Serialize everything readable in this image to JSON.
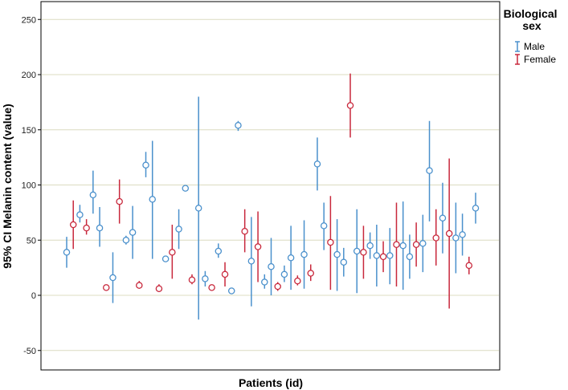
{
  "chart_data": {
    "type": "errorbar",
    "xlabel": "Patients (id)",
    "ylabel": "95% CI Melanin content (value)",
    "ylim": [
      -60,
      260
    ],
    "yticks": [
      -50,
      0,
      50,
      100,
      150,
      200,
      250
    ],
    "grid": "horizontal",
    "legend": {
      "title": "Biological sex",
      "position": "top-right"
    },
    "colors": {
      "Male": "#4a90cc",
      "Female": "#c8283c"
    },
    "series": [
      {
        "name": "Male",
        "points": [
          {
            "mean": 39,
            "low": 25,
            "high": 53
          },
          {
            "mean": 73,
            "low": 66,
            "high": 82
          },
          {
            "mean": 91,
            "low": 74,
            "high": 113
          },
          {
            "mean": 61,
            "low": 44,
            "high": 80
          },
          {
            "mean": 16,
            "low": -7,
            "high": 39
          },
          {
            "mean": 50,
            "low": 46,
            "high": 54
          },
          {
            "mean": 57,
            "low": 33,
            "high": 81
          },
          {
            "mean": 118,
            "low": 107,
            "high": 130
          },
          {
            "mean": 87,
            "low": 33,
            "high": 140
          },
          {
            "mean": 33,
            "low": 31,
            "high": 35
          },
          {
            "mean": 60,
            "low": 42,
            "high": 78
          },
          {
            "mean": 97,
            "low": 95,
            "high": 99
          },
          {
            "mean": 79,
            "low": -22,
            "high": 180
          },
          {
            "mean": 15,
            "low": 8,
            "high": 22
          },
          {
            "mean": 40,
            "low": 34,
            "high": 47
          },
          {
            "mean": 4,
            "low": 4,
            "high": 4
          },
          {
            "mean": 154,
            "low": 149,
            "high": 158
          },
          {
            "mean": 31,
            "low": -10,
            "high": 71
          },
          {
            "mean": 12,
            "low": 6,
            "high": 19
          },
          {
            "mean": 26,
            "low": 0,
            "high": 52
          },
          {
            "mean": 19,
            "low": 12,
            "high": 27
          },
          {
            "mean": 34,
            "low": 5,
            "high": 63
          },
          {
            "mean": 37,
            "low": 6,
            "high": 68
          },
          {
            "mean": 119,
            "low": 95,
            "high": 143
          },
          {
            "mean": 63,
            "low": 41,
            "high": 84
          },
          {
            "mean": 37,
            "low": 4,
            "high": 69
          },
          {
            "mean": 30,
            "low": 17,
            "high": 43
          },
          {
            "mean": 40,
            "low": 2,
            "high": 78
          },
          {
            "mean": 45,
            "low": 33,
            "high": 57
          },
          {
            "mean": 36,
            "low": 8,
            "high": 64
          },
          {
            "mean": 36,
            "low": 10,
            "high": 61
          },
          {
            "mean": 45,
            "low": 5,
            "high": 85
          },
          {
            "mean": 35,
            "low": 15,
            "high": 55
          },
          {
            "mean": 47,
            "low": 21,
            "high": 73
          },
          {
            "mean": 113,
            "low": 67,
            "high": 158
          },
          {
            "mean": 70,
            "low": 38,
            "high": 102
          },
          {
            "mean": 52,
            "low": 20,
            "high": 84
          },
          {
            "mean": 55,
            "low": 36,
            "high": 74
          },
          {
            "mean": 79,
            "low": 65,
            "high": 93
          }
        ]
      },
      {
        "name": "Female",
        "points": [
          {
            "mean": 64,
            "low": 42,
            "high": 86
          },
          {
            "mean": 61,
            "low": 55,
            "high": 69
          },
          {
            "mean": 7,
            "low": 7,
            "high": 7
          },
          {
            "mean": 85,
            "low": 65,
            "high": 105
          },
          {
            "mean": 9,
            "low": 6,
            "high": 13
          },
          {
            "mean": 6,
            "low": 3,
            "high": 10
          },
          {
            "mean": 39,
            "low": 15,
            "high": 64
          },
          {
            "mean": 14,
            "low": 10,
            "high": 19
          },
          {
            "mean": 7,
            "low": 7,
            "high": 7
          },
          {
            "mean": 19,
            "low": 8,
            "high": 30
          },
          {
            "mean": 58,
            "low": 39,
            "high": 78
          },
          {
            "mean": 44,
            "low": 12,
            "high": 76
          },
          {
            "mean": 8,
            "low": 4,
            "high": 12
          },
          {
            "mean": 13,
            "low": 9,
            "high": 18
          },
          {
            "mean": 20,
            "low": 13,
            "high": 28
          },
          {
            "mean": 48,
            "low": 5,
            "high": 90
          },
          {
            "mean": 172,
            "low": 143,
            "high": 201
          },
          {
            "mean": 39,
            "low": 15,
            "high": 63
          },
          {
            "mean": 35,
            "low": 21,
            "high": 49
          },
          {
            "mean": 46,
            "low": 8,
            "high": 84
          },
          {
            "mean": 46,
            "low": 26,
            "high": 66
          },
          {
            "mean": 52,
            "low": 27,
            "high": 78
          },
          {
            "mean": 56,
            "low": -12,
            "high": 124
          },
          {
            "mean": 27,
            "low": 19,
            "high": 35
          }
        ]
      }
    ]
  }
}
